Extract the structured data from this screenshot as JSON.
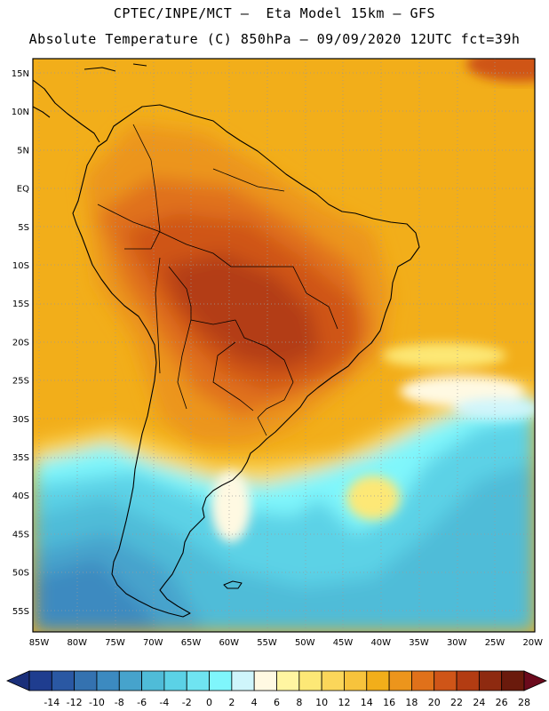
{
  "header": {
    "line1": "CPTEC/INPE/MCT –  Eta Model 15km – GFS",
    "line2": "Absolute Temperature (C) 850hPa – 09/09/2020 12UTC fct=39h"
  },
  "map": {
    "lon_labels": [
      "85W",
      "80W",
      "75W",
      "70W",
      "65W",
      "60W",
      "55W",
      "50W",
      "45W",
      "40W",
      "35W",
      "30W",
      "25W",
      "20W"
    ],
    "lat_labels": [
      "15N",
      "10N",
      "5N",
      "EQ",
      "5S",
      "10S",
      "15S",
      "20S",
      "25S",
      "30S",
      "35S",
      "40S",
      "45S",
      "50S",
      "55S"
    ]
  },
  "colorbar": {
    "labels": [
      "-14",
      "-12",
      "-10",
      "-8",
      "-6",
      "-4",
      "-2",
      "0",
      "2",
      "4",
      "6",
      "8",
      "10",
      "12",
      "14",
      "16",
      "18",
      "20",
      "22",
      "24",
      "26",
      "28"
    ],
    "colors": [
      "#1f3d8f",
      "#2a58a3",
      "#3472b0",
      "#3c8ac0",
      "#46a3cc",
      "#4fbcd8",
      "#5bd2e6",
      "#6fe4f1",
      "#7ff6fc",
      "#cff5fb",
      "#fff9e2",
      "#fff5a1",
      "#fde876",
      "#fbd65a",
      "#f7c33c",
      "#f2ae1a",
      "#ec951c",
      "#e0711a",
      "#cf5518",
      "#b33c12",
      "#8e2a10",
      "#6a1a0c"
    ],
    "under_color": "#1a2f7a",
    "over_color": "#6b0a1c"
  }
}
